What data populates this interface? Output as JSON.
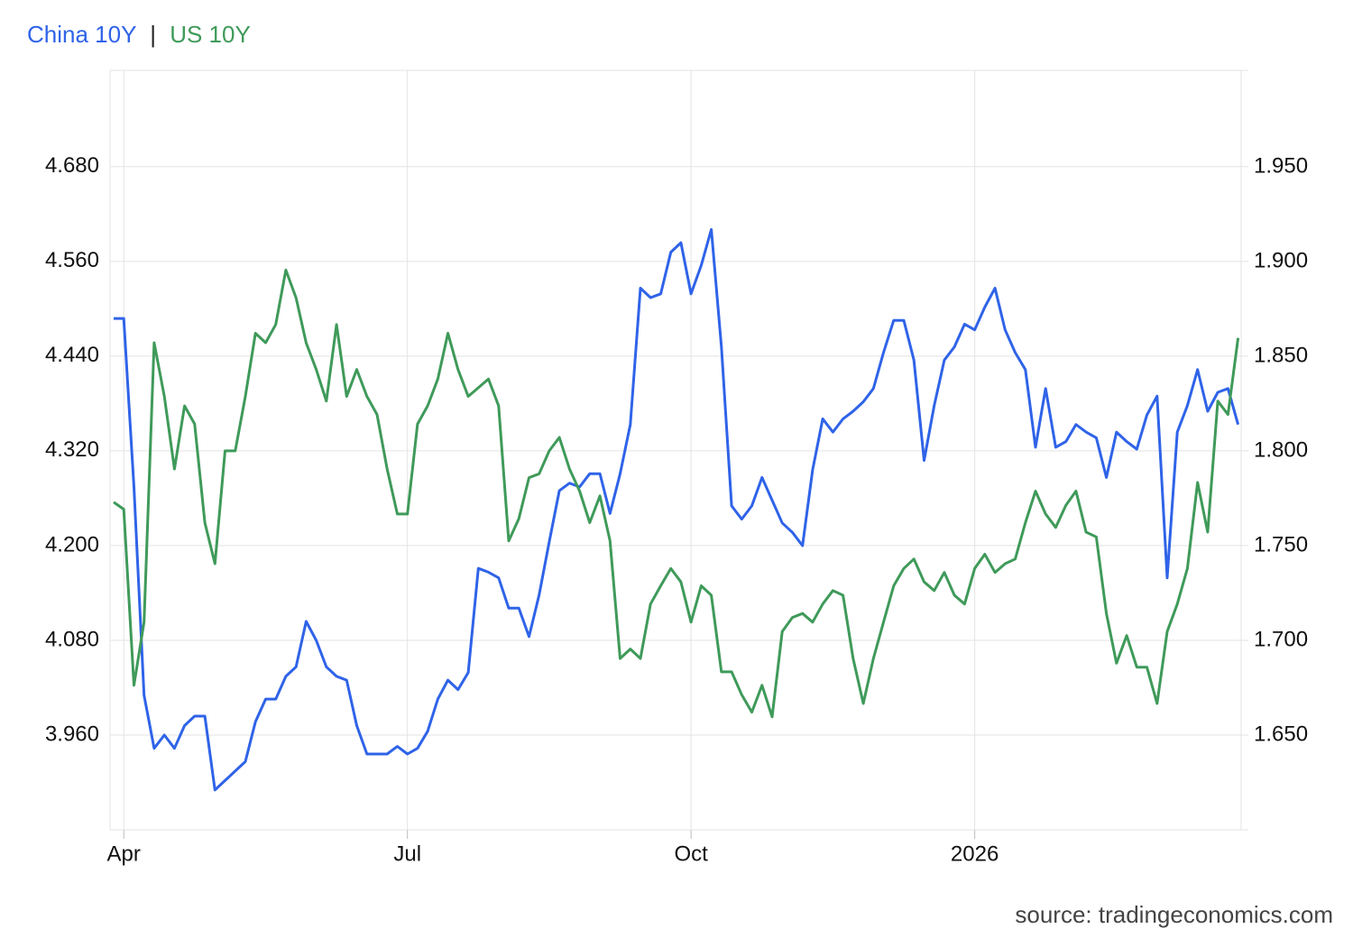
{
  "chart_data": {
    "type": "line",
    "legend_separator": "|",
    "source": "source: tradingeconomics.com",
    "categories": [
      null,
      "Apr",
      null,
      null,
      null,
      null,
      null,
      null,
      null,
      null,
      null,
      null,
      null,
      null,
      null,
      null,
      null,
      null,
      null,
      null,
      null,
      null,
      null,
      null,
      null,
      null,
      null,
      null,
      null,
      "Jul",
      null,
      null,
      null,
      null,
      null,
      null,
      null,
      null,
      null,
      null,
      null,
      null,
      null,
      null,
      null,
      null,
      null,
      null,
      null,
      null,
      null,
      null,
      null,
      null,
      null,
      null,
      null,
      "Oct",
      null,
      null,
      null,
      null,
      null,
      null,
      null,
      null,
      null,
      null,
      null,
      null,
      null,
      null,
      null,
      null,
      null,
      null,
      null,
      null,
      null,
      null,
      null,
      null,
      null,
      null,
      null,
      "2026",
      null,
      null,
      null,
      null,
      null,
      null,
      null,
      null,
      null,
      null,
      null,
      null,
      null,
      null,
      null,
      null,
      null,
      null,
      null,
      null,
      null,
      null,
      null,
      null,
      null,
      null
    ],
    "series": [
      {
        "name": "China 10Y",
        "color": "#2f63e8",
        "axis": "y2",
        "values": [
          1.87,
          1.87,
          1.781,
          1.671,
          1.643,
          1.65,
          1.643,
          1.655,
          1.66,
          1.66,
          1.621,
          1.626,
          1.631,
          1.636,
          1.657,
          1.669,
          1.669,
          1.681,
          1.686,
          1.71,
          1.7,
          1.686,
          1.681,
          1.679,
          1.655,
          1.64,
          1.64,
          1.64,
          1.644,
          1.64,
          1.643,
          1.652,
          1.669,
          1.679,
          1.674,
          1.683,
          1.738,
          1.736,
          1.733,
          1.717,
          1.717,
          1.702,
          1.724,
          1.752,
          1.779,
          1.783,
          1.781,
          1.788,
          1.788,
          1.767,
          1.788,
          1.814,
          1.886,
          1.881,
          1.883,
          1.905,
          1.91,
          1.883,
          1.898,
          1.917,
          1.855,
          1.771,
          1.764,
          1.771,
          1.786,
          1.774,
          1.762,
          1.757,
          1.75,
          1.79,
          1.817,
          1.81,
          1.817,
          1.821,
          1.826,
          1.833,
          1.852,
          1.869,
          1.869,
          1.848,
          1.795,
          1.824,
          1.848,
          1.855,
          1.867,
          1.864,
          1.876,
          1.886,
          1.864,
          1.852,
          1.843,
          1.802,
          1.833,
          1.802,
          1.805,
          1.814,
          1.81,
          1.807,
          1.786,
          1.81,
          1.805,
          1.801,
          1.819,
          1.829,
          1.733,
          1.81,
          1.824,
          1.843,
          1.821,
          1.831,
          1.833,
          1.814
        ]
      },
      {
        "name": "US 10Y",
        "color": "#3f9a5a",
        "axis": "y",
        "values": [
          4.255,
          4.246,
          4.023,
          4.103,
          4.457,
          4.389,
          4.297,
          4.377,
          4.354,
          4.229,
          4.177,
          4.32,
          4.32,
          4.389,
          4.469,
          4.457,
          4.48,
          4.549,
          4.514,
          4.457,
          4.423,
          4.383,
          4.48,
          4.389,
          4.423,
          4.389,
          4.366,
          4.297,
          4.24,
          4.24,
          4.354,
          4.377,
          4.411,
          4.469,
          4.423,
          4.389,
          4.4,
          4.411,
          4.377,
          4.206,
          4.234,
          4.286,
          4.291,
          4.32,
          4.337,
          4.297,
          4.269,
          4.229,
          4.263,
          4.206,
          4.057,
          4.069,
          4.057,
          4.126,
          4.149,
          4.171,
          4.154,
          4.103,
          4.149,
          4.137,
          4.04,
          4.04,
          4.011,
          3.989,
          4.023,
          3.983,
          4.091,
          4.109,
          4.114,
          4.103,
          4.126,
          4.143,
          4.137,
          4.057,
          4.0,
          4.057,
          4.103,
          4.149,
          4.171,
          4.183,
          4.154,
          4.143,
          4.166,
          4.137,
          4.126,
          4.171,
          4.189,
          4.166,
          4.177,
          4.183,
          4.229,
          4.269,
          4.24,
          4.223,
          4.251,
          4.269,
          4.217,
          4.211,
          4.114,
          4.051,
          4.086,
          4.046,
          4.046,
          4.0,
          4.091,
          4.126,
          4.171,
          4.28,
          4.217,
          4.383,
          4.366,
          4.463
        ]
      }
    ],
    "ylim": [
      3.84,
      4.802
    ],
    "yticks": [
      {
        "value": 3.96,
        "label": "3.960"
      },
      {
        "value": 4.08,
        "label": "4.080"
      },
      {
        "value": 4.2,
        "label": "4.200"
      },
      {
        "value": 4.32,
        "label": "4.320"
      },
      {
        "value": 4.44,
        "label": "4.440"
      },
      {
        "value": 4.56,
        "label": "4.560"
      },
      {
        "value": 4.68,
        "label": "4.680"
      }
    ],
    "y2lim": [
      1.6,
      2.001
    ],
    "y2ticks": [
      {
        "value": 1.65,
        "label": "1.650"
      },
      {
        "value": 1.7,
        "label": "1.700"
      },
      {
        "value": 1.75,
        "label": "1.750"
      },
      {
        "value": 1.8,
        "label": "1.800"
      },
      {
        "value": 1.85,
        "label": "1.850"
      },
      {
        "value": 1.9,
        "label": "1.900"
      },
      {
        "value": 1.95,
        "label": "1.950"
      }
    ],
    "grid": true
  }
}
